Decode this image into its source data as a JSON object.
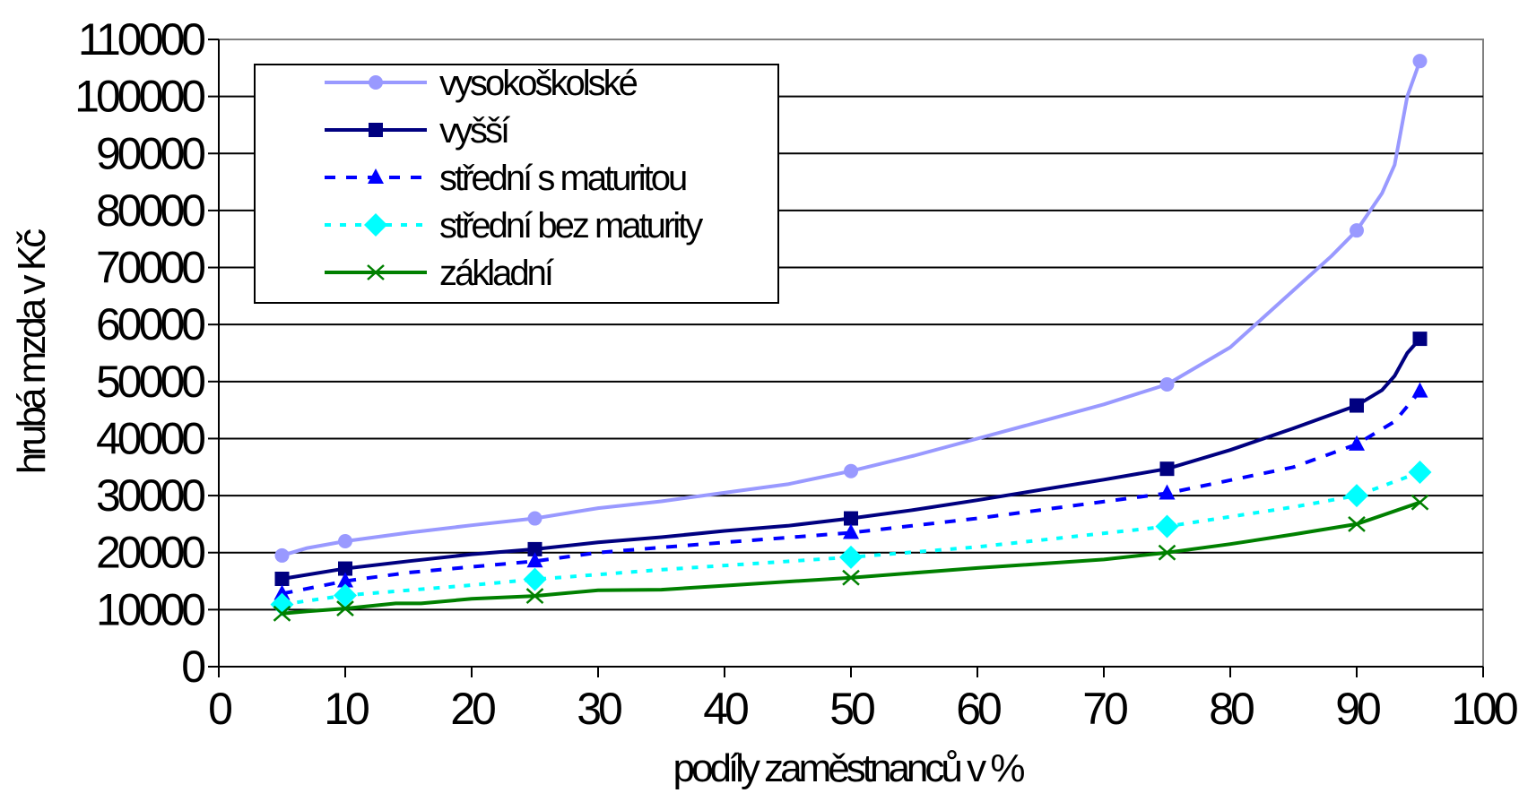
{
  "chart_data": {
    "type": "line",
    "xlabel": "podíly zaměstnanců v %",
    "ylabel": "hrubá mzda v Kč",
    "xlim": [
      0,
      100
    ],
    "ylim": [
      0,
      110000
    ],
    "x_ticks": [
      0,
      10,
      20,
      30,
      40,
      50,
      60,
      70,
      80,
      90,
      100
    ],
    "y_ticks": [
      0,
      10000,
      20000,
      30000,
      40000,
      50000,
      60000,
      70000,
      80000,
      90000,
      100000,
      110000
    ],
    "grid": "horizontal",
    "legend_position": "top-left",
    "series": [
      {
        "name": "vysokoškolské",
        "color": "#9999ff",
        "line_style": "solid",
        "marker": "circle",
        "x": [
          5,
          10,
          25,
          50,
          75,
          90,
          95
        ],
        "y": [
          19500,
          22000,
          26000,
          34300,
          49500,
          76500,
          106200
        ],
        "curve_x": [
          5,
          7,
          10,
          15,
          20,
          25,
          30,
          35,
          40,
          45,
          50,
          55,
          60,
          65,
          70,
          75,
          80,
          85,
          88,
          90,
          92,
          93,
          94,
          95
        ],
        "curve_y": [
          19500,
          20800,
          22000,
          23500,
          24800,
          26000,
          27800,
          29000,
          30500,
          32000,
          34300,
          37000,
          40000,
          43000,
          46000,
          49500,
          56000,
          66000,
          72000,
          76500,
          83000,
          88000,
          100000,
          106200
        ]
      },
      {
        "name": "vyšší",
        "color": "#000080",
        "line_style": "solid",
        "marker": "square",
        "x": [
          5,
          10,
          25,
          50,
          75,
          90,
          95
        ],
        "y": [
          15400,
          17200,
          20600,
          26000,
          34700,
          45800,
          57500
        ],
        "curve_x": [
          5,
          10,
          15,
          20,
          25,
          30,
          35,
          40,
          45,
          50,
          55,
          60,
          65,
          70,
          75,
          80,
          85,
          90,
          92,
          93,
          94,
          95
        ],
        "curve_y": [
          15400,
          17200,
          18500,
          19700,
          20600,
          21800,
          22700,
          23800,
          24700,
          26000,
          27500,
          29200,
          31000,
          32800,
          34700,
          38000,
          41800,
          45800,
          48500,
          51000,
          55000,
          57500
        ]
      },
      {
        "name": "střední s maturitou",
        "color": "#0000ff",
        "line_style": "dashed",
        "marker": "triangle",
        "x": [
          5,
          10,
          25,
          50,
          75,
          90,
          95
        ],
        "y": [
          12800,
          15000,
          18500,
          23500,
          30400,
          39000,
          48300
        ],
        "curve_x": [
          5,
          10,
          15,
          20,
          25,
          30,
          40,
          50,
          60,
          75,
          85,
          90,
          93,
          95
        ],
        "curve_y": [
          12800,
          15000,
          16500,
          17500,
          18500,
          20000,
          21800,
          23500,
          26000,
          30400,
          35000,
          39000,
          43000,
          48300
        ]
      },
      {
        "name": "střední bez maturity",
        "color": "#00ffff",
        "line_style": "dotted",
        "marker": "diamond",
        "x": [
          5,
          10,
          25,
          50,
          75,
          90,
          95
        ],
        "y": [
          10900,
          12500,
          15300,
          19200,
          24600,
          30000,
          34100
        ],
        "curve_x": [
          5,
          10,
          15,
          20,
          25,
          35,
          50,
          60,
          75,
          85,
          90,
          95
        ],
        "curve_y": [
          10900,
          12500,
          13400,
          14300,
          15300,
          17000,
          19200,
          21000,
          24600,
          28000,
          30000,
          34100
        ]
      },
      {
        "name": "základní",
        "color": "#008000",
        "line_style": "solid",
        "marker": "x",
        "x": [
          5,
          10,
          25,
          50,
          75,
          90,
          95
        ],
        "y": [
          9300,
          10200,
          12400,
          15600,
          20000,
          25000,
          28800
        ],
        "curve_x": [
          5,
          7,
          10,
          14,
          16,
          20,
          25,
          30,
          35,
          40,
          50,
          60,
          70,
          75,
          80,
          85,
          90,
          95
        ],
        "curve_y": [
          9300,
          9700,
          10200,
          11100,
          11100,
          11900,
          12400,
          13400,
          13500,
          14200,
          15600,
          17300,
          18800,
          20000,
          21500,
          23200,
          25000,
          28800
        ]
      }
    ]
  }
}
